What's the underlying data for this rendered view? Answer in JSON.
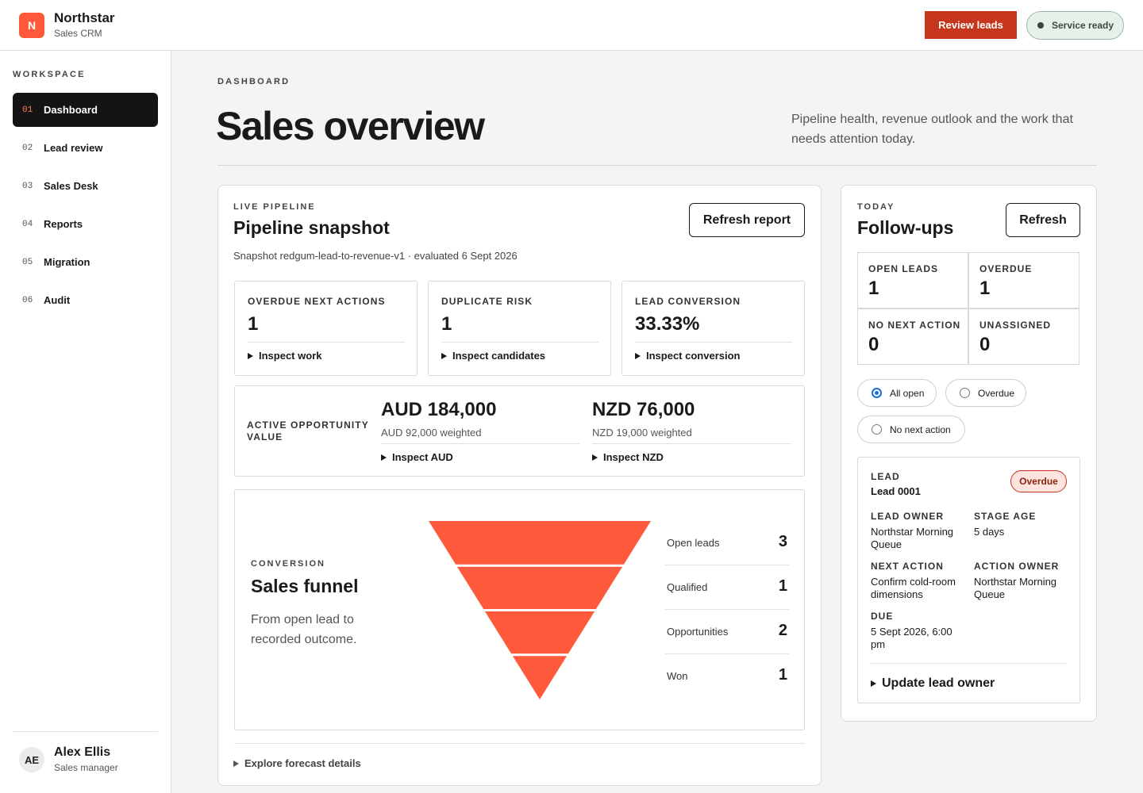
{
  "app": {
    "logo_letter": "N",
    "name": "Northstar",
    "subtitle": "Sales CRM"
  },
  "header": {
    "review_label": "Review leads",
    "status_label": "Service ready",
    "status_color": "#2f4a35"
  },
  "sidebar": {
    "section_label": "WORKSPACE",
    "items": [
      {
        "num": "01",
        "label": "Dashboard",
        "active": true
      },
      {
        "num": "02",
        "label": "Lead review"
      },
      {
        "num": "03",
        "label": "Sales Desk"
      },
      {
        "num": "04",
        "label": "Reports"
      },
      {
        "num": "05",
        "label": "Migration"
      },
      {
        "num": "06",
        "label": "Audit"
      }
    ],
    "user": {
      "initials": "AE",
      "name": "Alex Ellis",
      "role": "Sales manager"
    }
  },
  "page": {
    "breadcrumb": "DASHBOARD",
    "title": "Sales overview",
    "description": "Pipeline health, revenue outlook and the work that needs attention today."
  },
  "pipeline": {
    "eyebrow": "LIVE PIPELINE",
    "title": "Pipeline snapshot",
    "refresh_label": "Refresh report",
    "snapshot_text": "Snapshot redgum-lead-to-revenue-v1 · evaluated 6 Sept 2026",
    "metrics": [
      {
        "label": "OVERDUE NEXT ACTIONS",
        "value": "1",
        "action": "Inspect work"
      },
      {
        "label": "DUPLICATE RISK",
        "value": "1",
        "action": "Inspect candidates"
      },
      {
        "label": "LEAD CONVERSION",
        "value": "33.33%",
        "action": "Inspect conversion"
      }
    ],
    "opportunity": {
      "label_line1": "ACTIVE OPPORTUNITY",
      "label_line2": "VALUE",
      "currencies": [
        {
          "value": "AUD 184,000",
          "weighted": "AUD 92,000 weighted",
          "action": "Inspect AUD"
        },
        {
          "value": "NZD 76,000",
          "weighted": "NZD 19,000 weighted",
          "action": "Inspect NZD"
        }
      ]
    },
    "funnel": {
      "eyebrow": "CONVERSION",
      "title": "Sales funnel",
      "description": "From open lead to recorded outcome.",
      "color": "#ff5a3c",
      "stages": [
        {
          "label": "Open leads",
          "value": "3"
        },
        {
          "label": "Qualified",
          "value": "1"
        },
        {
          "label": "Opportunities",
          "value": "2"
        },
        {
          "label": "Won",
          "value": "1"
        }
      ]
    },
    "forecast_label": "Explore forecast details"
  },
  "followups": {
    "eyebrow": "TODAY",
    "title": "Follow-ups",
    "refresh_label": "Refresh",
    "stats": [
      {
        "label": "OPEN LEADS",
        "value": "1"
      },
      {
        "label": "OVERDUE",
        "value": "1"
      },
      {
        "label": "NO NEXT ACTION",
        "value": "0"
      },
      {
        "label": "UNASSIGNED",
        "value": "0"
      }
    ],
    "filters": [
      {
        "label": "All open",
        "checked": true
      },
      {
        "label": "Overdue"
      },
      {
        "label": "No next action"
      }
    ],
    "lead": {
      "label": "LEAD",
      "name": "Lead 0001",
      "badge": "Overdue",
      "owner_label": "LEAD OWNER",
      "owner_line1": "Northstar Morning",
      "owner_line2": "Queue",
      "stage_label": "STAGE AGE",
      "stage_value": "5 days",
      "next_label": "NEXT ACTION",
      "next_line1": "Confirm cold-room",
      "next_line2": "dimensions",
      "action_owner_label": "ACTION OWNER",
      "action_owner_line1": "Northstar Morning",
      "action_owner_line2": "Queue",
      "due_label": "DUE",
      "due_line1": "5 Sept 2026, 6:00",
      "due_line2": "pm",
      "update_label": "Update lead owner"
    }
  }
}
